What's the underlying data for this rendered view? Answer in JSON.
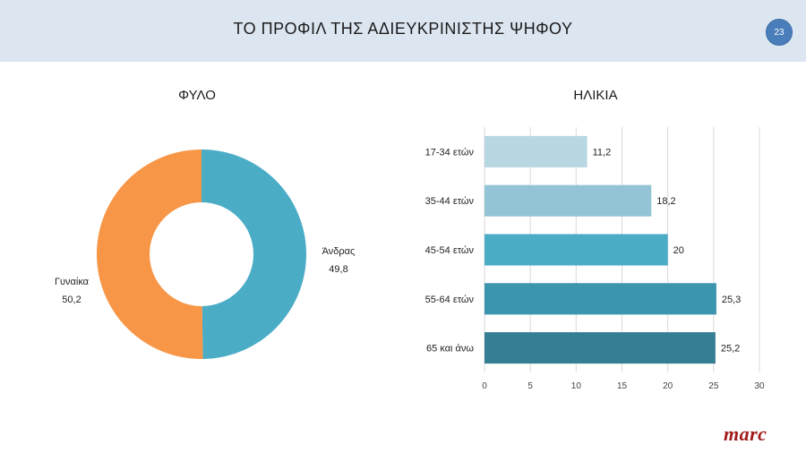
{
  "header": {
    "title": "ΤΟ ΠΡΟΦΙΛ ΤΗΣ ΑΔΙΕΥΚΡΙΝΙΣΤΗΣ ΨΗΦΟΥ",
    "page_number": "23"
  },
  "logo": "marc",
  "chart_data": [
    {
      "type": "pie",
      "title": "ΦΥΛΟ",
      "donut": true,
      "slices": [
        {
          "label": "Άνδρας",
          "value": 49.8,
          "value_label": "49,8",
          "color": "#4bacc6"
        },
        {
          "label": "Γυναίκα",
          "value": 50.2,
          "value_label": "50,2",
          "color": "#f79646"
        }
      ]
    },
    {
      "type": "bar",
      "orientation": "horizontal",
      "title": "ΗΛΙΚΙΑ",
      "categories": [
        "17-34 ετών",
        "35-44 ετών",
        "45-54 ετών",
        "55-64 ετών",
        "65 και άνω"
      ],
      "values": [
        11.2,
        18.2,
        20,
        25.3,
        25.2
      ],
      "value_labels": [
        "11,2",
        "18,2",
        "20",
        "25,3",
        "25,2"
      ],
      "colors": [
        "#b7d7e2",
        "#93c4d5",
        "#4bacc6",
        "#3a95ad",
        "#347f93"
      ],
      "xlim": [
        0,
        30
      ],
      "xticks": [
        "0",
        "5",
        "10",
        "15",
        "20",
        "25",
        "30"
      ],
      "grid": true
    }
  ]
}
